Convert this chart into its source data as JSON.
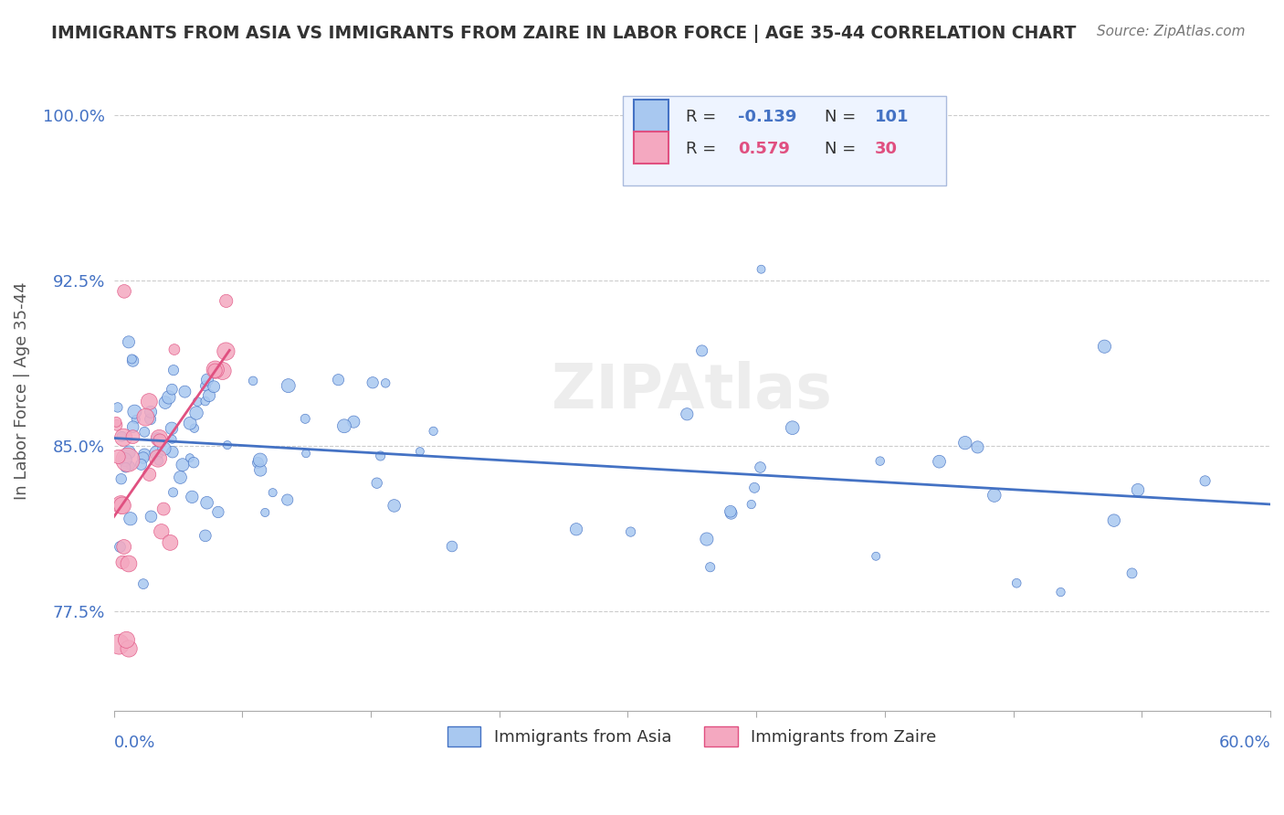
{
  "title": "IMMIGRANTS FROM ASIA VS IMMIGRANTS FROM ZAIRE IN LABOR FORCE | AGE 35-44 CORRELATION CHART",
  "source": "Source: ZipAtlas.com",
  "ylabel": "In Labor Force | Age 35-44",
  "ylim": [
    0.73,
    1.02
  ],
  "xlim": [
    0.0,
    0.6
  ],
  "asia_R": -0.139,
  "asia_N": 101,
  "zaire_R": 0.579,
  "zaire_N": 30,
  "asia_color": "#a8c8f0",
  "asia_line_color": "#4472c4",
  "zaire_color": "#f4a8c0",
  "zaire_line_color": "#e05080"
}
